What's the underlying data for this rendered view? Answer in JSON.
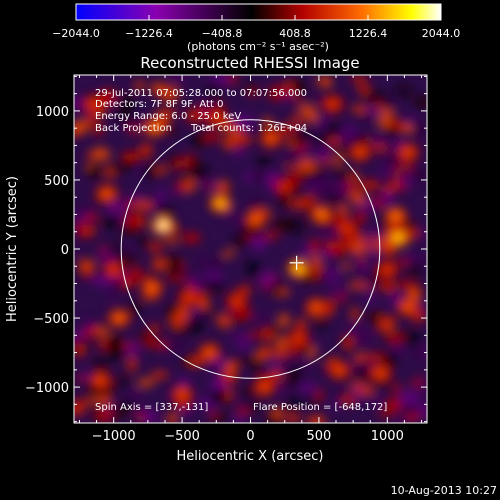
{
  "chart_data": {
    "type": "heatmap",
    "title": "Reconstructed RHESSI Image",
    "xlabel": "Heliocentric X (arcsec)",
    "ylabel": "Heliocentric Y (arcsec)",
    "xlim": [
      -1290,
      1290
    ],
    "ylim": [
      -1260,
      1260
    ],
    "xticks": [
      -1000,
      -500,
      0,
      500,
      1000
    ],
    "xtick_labels": [
      "−1000",
      "−500",
      "0",
      "500",
      "1000"
    ],
    "yticks": [
      -1000,
      -500,
      0,
      500,
      1000
    ],
    "ytick_labels": [
      "−1000",
      "−500",
      "0",
      "500",
      "1000"
    ],
    "colorbar": {
      "range": [
        -2044.0,
        2044.0
      ],
      "ticks": [
        -2044.0,
        -1226.4,
        -408.8,
        408.8,
        1226.4,
        2044.0
      ],
      "tick_labels": [
        "−2044.0",
        "−1226.4",
        "−408.8",
        "408.8",
        "1226.4",
        "2044.0"
      ],
      "units": "(photons cm⁻² s⁻¹ asec⁻²)",
      "colors": [
        "#0000ff",
        "#8a00b0",
        "#000000",
        "#b30000",
        "#ff6a00",
        "#ffff00",
        "#ffffff"
      ]
    },
    "annotations": [
      "29-Jul-2011 07:05:28.000 to 07:07:56.000",
      "Detectors: 7F 8F 9F, Att 0",
      "Energy Range: 6.0 - 25.0 keV",
      "Back Projection      Total counts: 1.26E+04"
    ],
    "spin_axis": "Spin Axis = [337,-131]",
    "flare_position": "Flare Position = [-648,172]",
    "solar_limb_radius_arcsec": 945,
    "flare_marker": [
      337,
      -100
    ],
    "bright_sources": [
      {
        "x": -640,
        "y": 170,
        "v": 2044
      },
      {
        "x": -220,
        "y": 330,
        "v": 1600
      },
      {
        "x": 350,
        "y": -140,
        "v": 1700
      },
      {
        "x": 520,
        "y": 250,
        "v": 1300
      },
      {
        "x": 1080,
        "y": 80,
        "v": 1700
      },
      {
        "x": 1060,
        "y": 240,
        "v": 1300
      },
      {
        "x": 40,
        "y": 220,
        "v": 1200
      },
      {
        "x": -700,
        "y": 880,
        "v": 1300
      },
      {
        "x": 150,
        "y": 800,
        "v": 1100
      },
      {
        "x": -720,
        "y": -280,
        "v": 1200
      },
      {
        "x": 480,
        "y": -420,
        "v": 1100
      },
      {
        "x": -300,
        "y": -750,
        "v": 1100
      },
      {
        "x": -960,
        "y": -500,
        "v": 1200
      },
      {
        "x": 100,
        "y": -1000,
        "v": 1000
      },
      {
        "x": 650,
        "y": -880,
        "v": 1000
      },
      {
        "x": 1150,
        "y": -420,
        "v": 1100
      },
      {
        "x": -1050,
        "y": 400,
        "v": 1100
      },
      {
        "x": 800,
        "y": 700,
        "v": 1000
      },
      {
        "x": 1150,
        "y": 700,
        "v": 1000
      },
      {
        "x": -500,
        "y": -1050,
        "v": 1000
      },
      {
        "x": -1100,
        "y": -950,
        "v": 1000
      },
      {
        "x": 950,
        "y": -900,
        "v": 1000
      },
      {
        "x": -100,
        "y": -380,
        "v": 900
      },
      {
        "x": 250,
        "y": 450,
        "v": 800
      },
      {
        "x": -450,
        "y": -350,
        "v": 900
      },
      {
        "x": 700,
        "y": 150,
        "v": 900
      },
      {
        "x": -1000,
        "y": -150,
        "v": 900
      },
      {
        "x": 1000,
        "y": -150,
        "v": 900
      },
      {
        "x": -250,
        "y": 950,
        "v": 900
      },
      {
        "x": 600,
        "y": 1050,
        "v": 900
      },
      {
        "x": -1150,
        "y": 1050,
        "v": 900
      },
      {
        "x": 350,
        "y": -650,
        "v": 900
      }
    ]
  },
  "footer": {
    "timestamp": "10-Aug-2013 10:27"
  }
}
